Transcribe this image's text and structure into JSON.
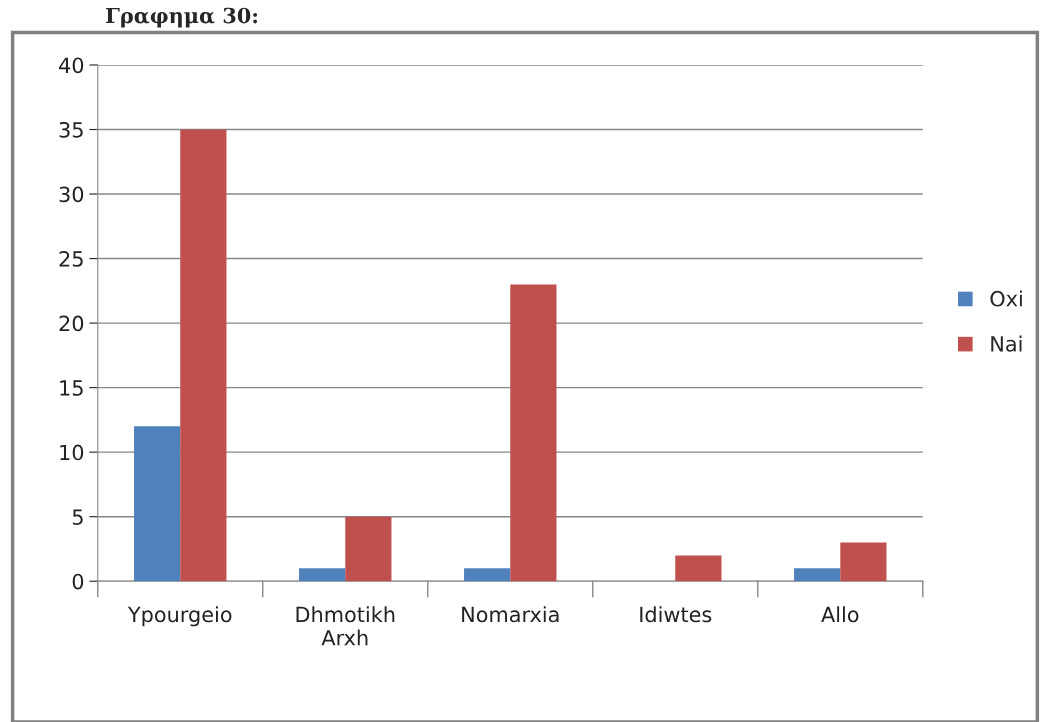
{
  "chart_data": {
    "type": "bar",
    "title": "Γραφημα 30:",
    "categories": [
      "Ypourgeio",
      "Dhmotikh Arxh",
      "Nomarxia",
      "Idiwtes",
      "Allo"
    ],
    "series": [
      {
        "name": "Oxi",
        "color": "#4f81bd",
        "values": [
          12,
          1,
          1,
          null,
          1
        ]
      },
      {
        "name": "Nai",
        "color": "#c0504d",
        "values": [
          35,
          5,
          23,
          2,
          3
        ]
      }
    ],
    "ylim": [
      0,
      40
    ],
    "yticks": [
      0,
      5,
      10,
      15,
      20,
      25,
      30,
      35,
      40
    ],
    "grid": "y",
    "legend": "right"
  }
}
